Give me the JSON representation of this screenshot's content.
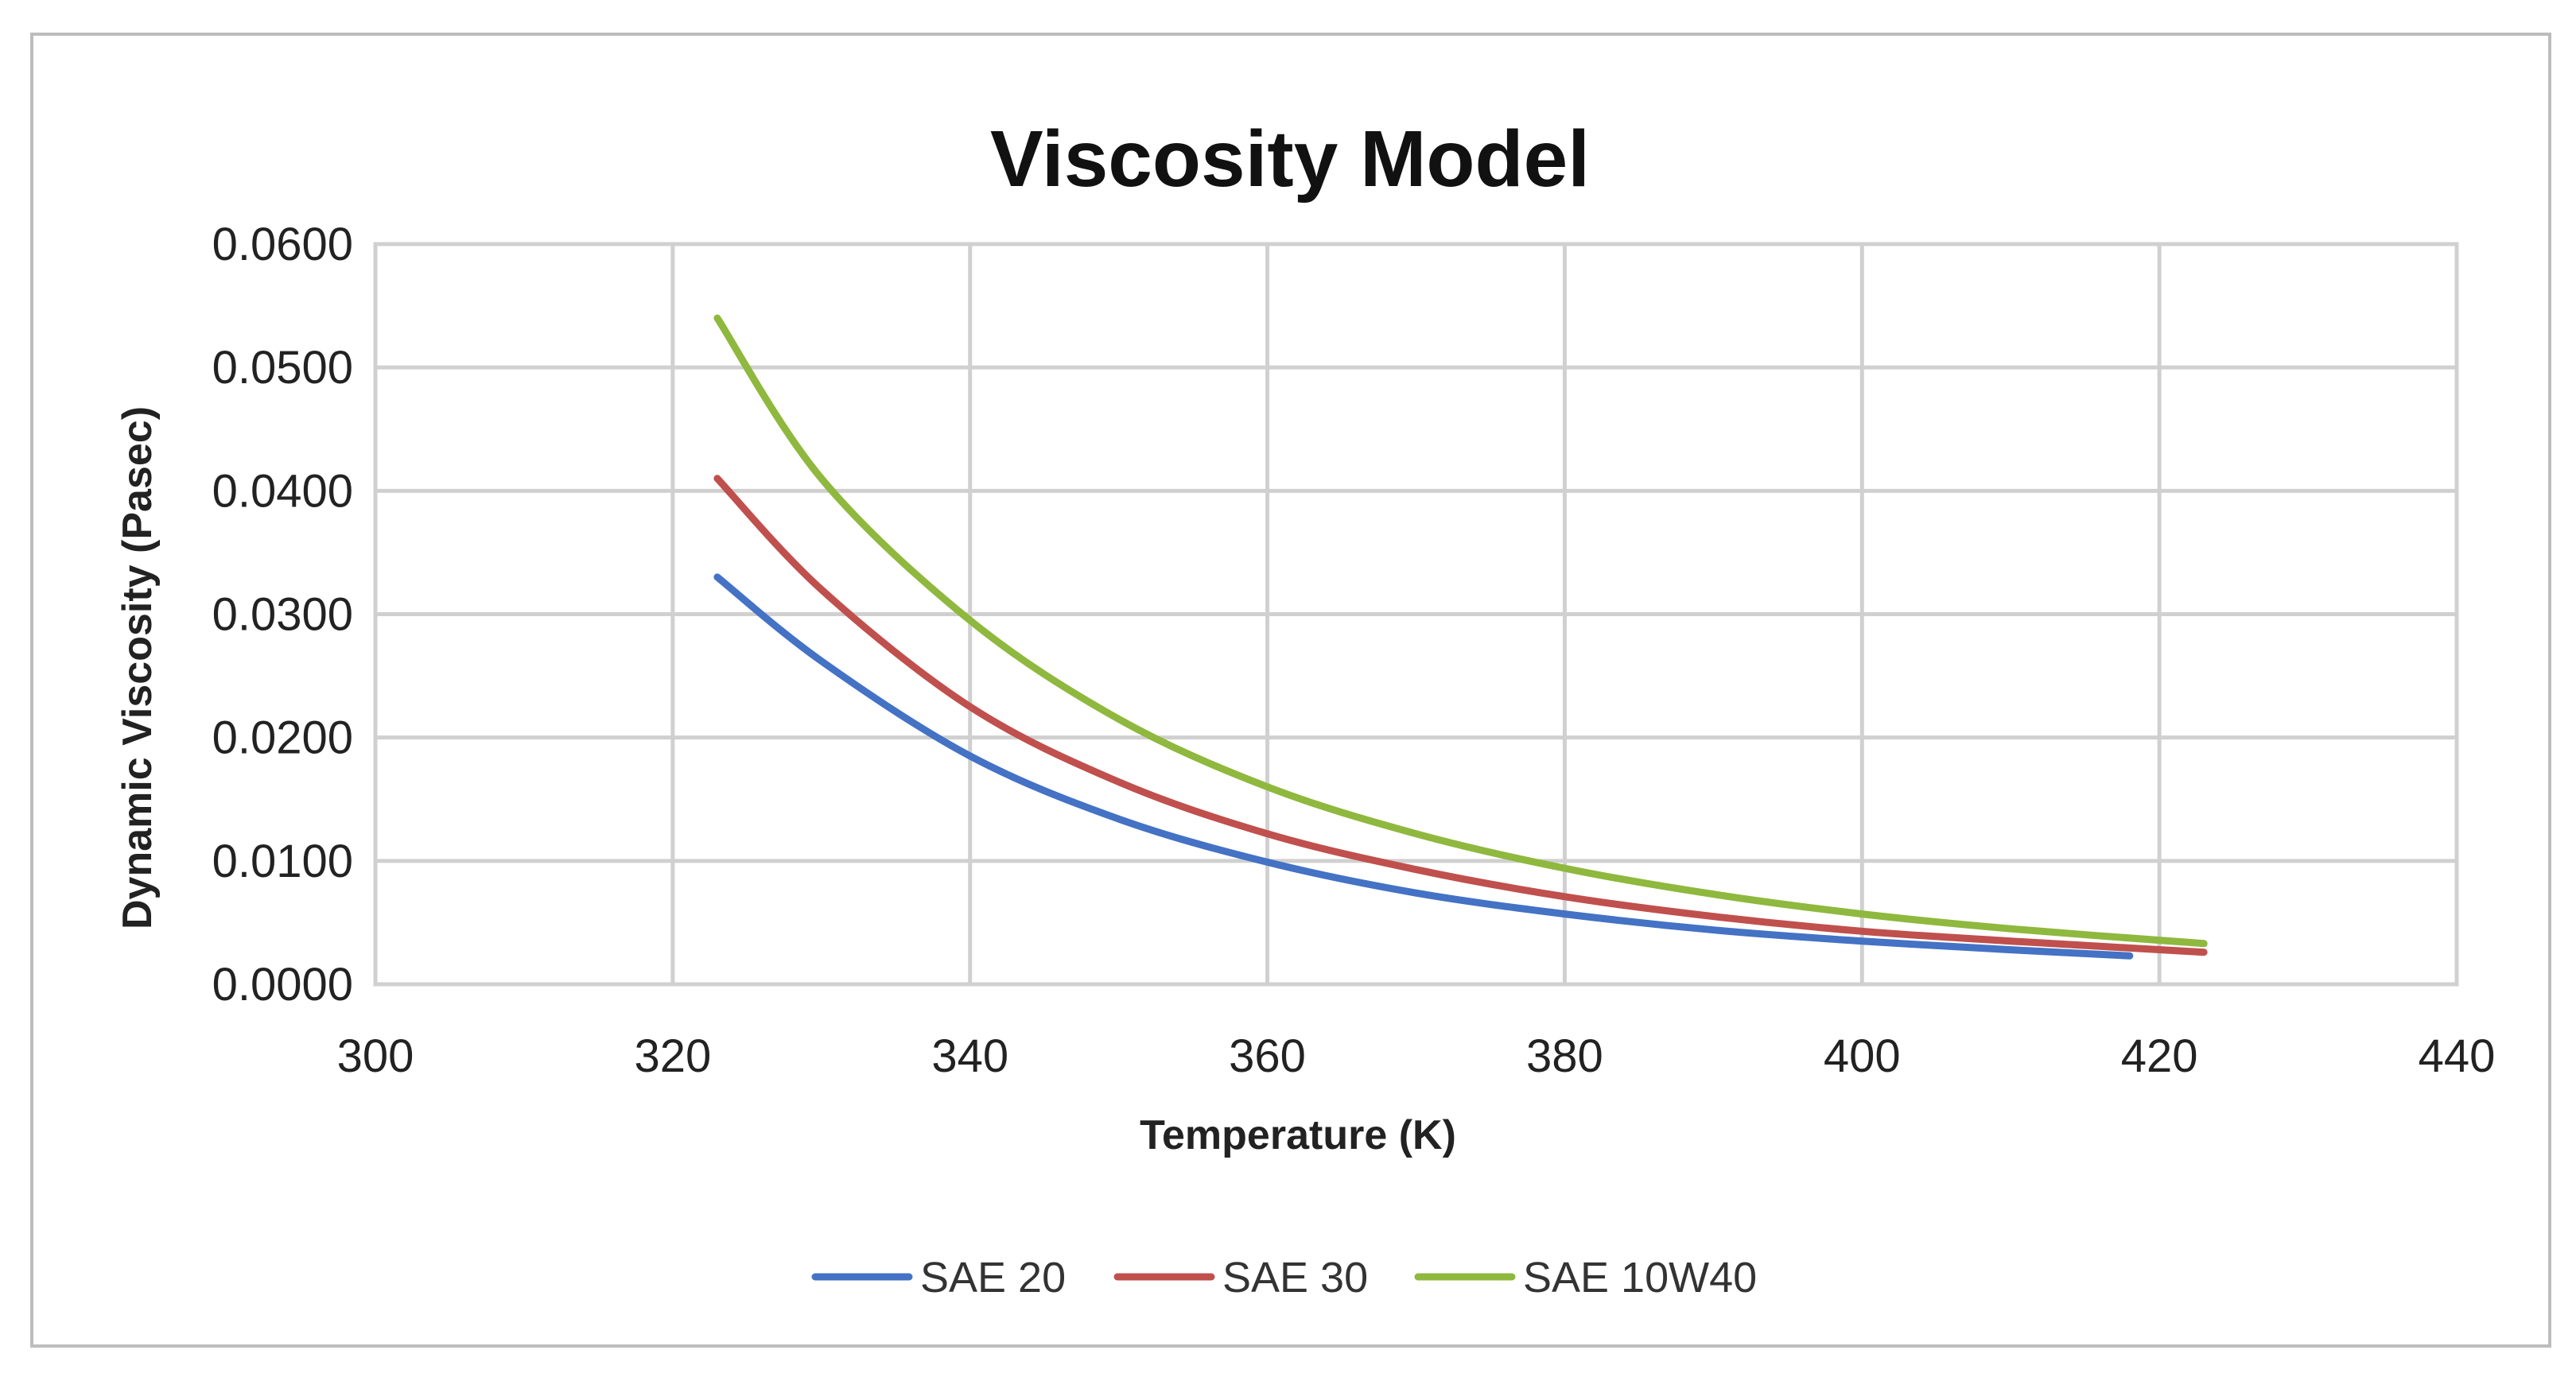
{
  "chart_data": {
    "type": "line",
    "title": "Viscosity Model",
    "xlabel": "Temperature (K)",
    "ylabel": "Dynamic Viscosity (Pasec)",
    "xlim": [
      300,
      440
    ],
    "ylim": [
      0,
      0.06
    ],
    "x_ticks": [
      300,
      320,
      340,
      360,
      380,
      400,
      420,
      440
    ],
    "x_tick_labels": [
      "300",
      "320",
      "340",
      "360",
      "380",
      "400",
      "420",
      "440"
    ],
    "y_ticks": [
      0,
      0.01,
      0.02,
      0.03,
      0.04,
      0.05,
      0.06
    ],
    "y_tick_labels": [
      "0.0000",
      "0.0100",
      "0.0200",
      "0.0300",
      "0.0400",
      "0.0500",
      "0.0600"
    ],
    "grid": true,
    "legend_position": "bottom",
    "series": [
      {
        "name": "SAE 20",
        "color": "#4472C4",
        "x": [
          323,
          330,
          340,
          350,
          360,
          370,
          380,
          390,
          400,
          410,
          418
        ],
        "y": [
          0.033,
          0.0262,
          0.0185,
          0.0134,
          0.0099,
          0.0074,
          0.0057,
          0.0044,
          0.0035,
          0.0028,
          0.0023
        ]
      },
      {
        "name": "SAE 30",
        "color": "#C0504D",
        "x": [
          323,
          330,
          340,
          350,
          360,
          370,
          380,
          390,
          400,
          410,
          423
        ],
        "y": [
          0.041,
          0.032,
          0.0225,
          0.0164,
          0.0122,
          0.0093,
          0.0071,
          0.0055,
          0.0043,
          0.0035,
          0.0026
        ]
      },
      {
        "name": "SAE 10W40",
        "color": "#8FB83E",
        "x": [
          323,
          330,
          340,
          350,
          360,
          370,
          380,
          390,
          400,
          410,
          423
        ],
        "y": [
          0.054,
          0.041,
          0.0295,
          0.0215,
          0.016,
          0.0122,
          0.0094,
          0.0073,
          0.0057,
          0.0045,
          0.0033
        ]
      }
    ]
  }
}
